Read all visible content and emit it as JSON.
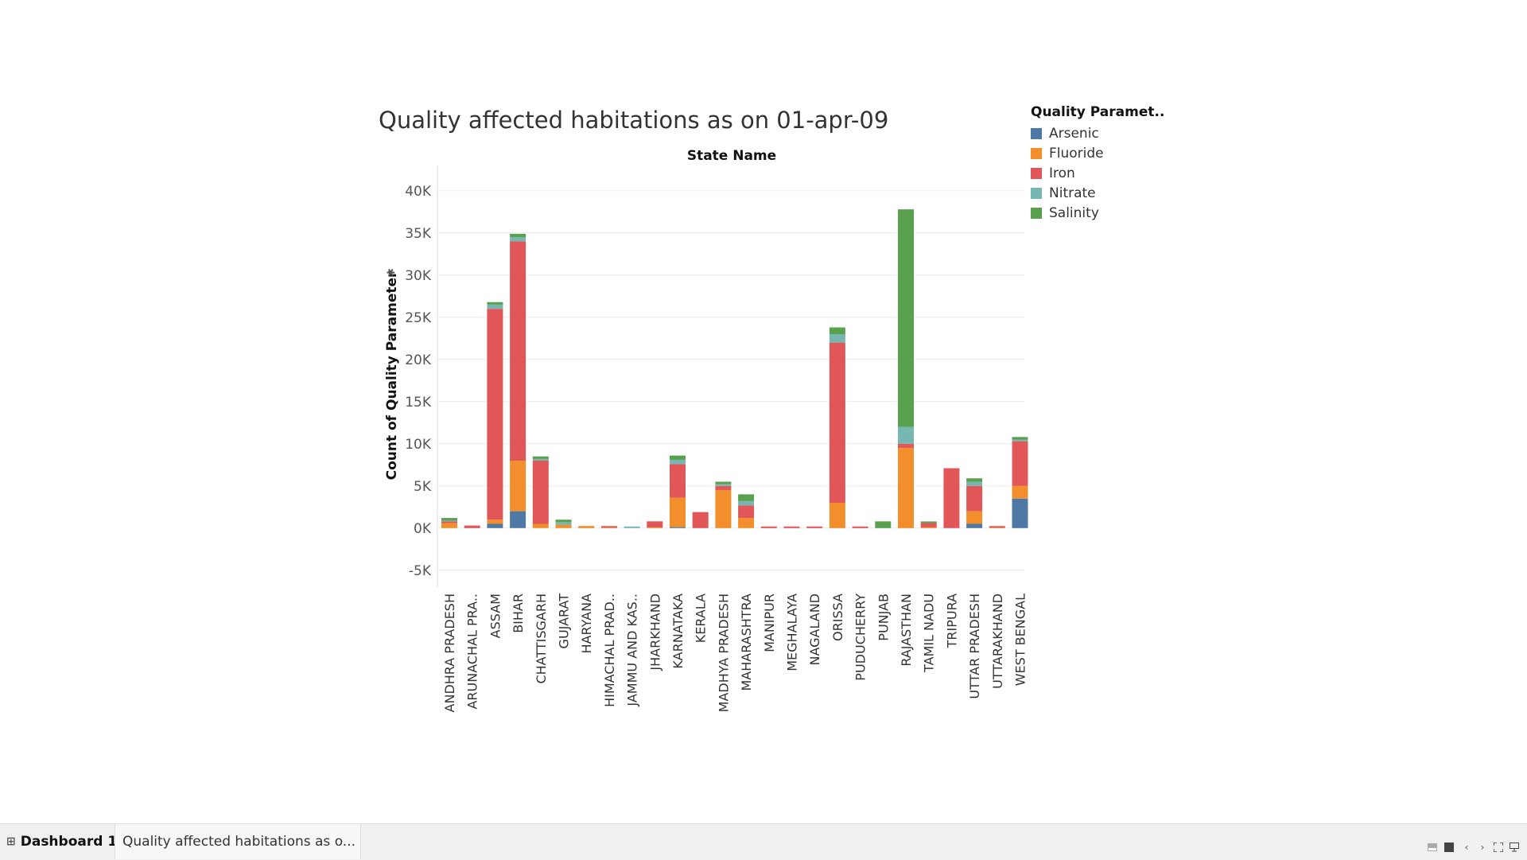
{
  "dashboard": {
    "tabs": [
      {
        "label": "Dashboard 1",
        "active": true
      },
      {
        "label": "Quality affected habitations as o..."
      }
    ]
  },
  "colors": {
    "Arsenic": "#4e79a7",
    "Fluoride": "#f28e2b",
    "Iron": "#e15759",
    "Nitrate": "#76b7b2",
    "Salinity": "#59a14f"
  },
  "chart_data": {
    "type": "bar",
    "stacked": true,
    "title": "Quality affected habitations as on 01-apr-09",
    "column_header": "State Name",
    "ylabel": "Count of Quality Parameter",
    "ylim": [
      -7000,
      43000
    ],
    "yticks": [
      -5000,
      0,
      5000,
      10000,
      15000,
      20000,
      25000,
      30000,
      35000,
      40000
    ],
    "ytick_labels": [
      "-5K",
      "0K",
      "5K",
      "10K",
      "15K",
      "20K",
      "25K",
      "30K",
      "35K",
      "40K"
    ],
    "grid": true,
    "legend": {
      "title": "Quality Paramet..",
      "position": "top-right",
      "entries": [
        "Arsenic",
        "Fluoride",
        "Iron",
        "Nitrate",
        "Salinity"
      ]
    },
    "categories": [
      "ANDHRA PRADESH",
      "ARUNACHAL PRA..",
      "ASSAM",
      "BIHAR",
      "CHATTISGARH",
      "GUJARAT",
      "HARYANA",
      "HIMACHAL PRAD..",
      "JAMMU AND KAS..",
      "JHARKHAND",
      "KARNATAKA",
      "KERALA",
      "MADHYA PRADESH",
      "MAHARASHTRA",
      "MANIPUR",
      "MEGHALAYA",
      "NAGALAND",
      "ORISSA",
      "PUDUCHERRY",
      "PUNJAB",
      "RAJASTHAN",
      "TAMIL NADU",
      "TRIPURA",
      "UTTAR PRADESH",
      "UTTARAKHAND",
      "WEST BENGAL"
    ],
    "series": [
      {
        "name": "Arsenic",
        "values": [
          0,
          0,
          500,
          2000,
          0,
          0,
          0,
          0,
          0,
          0,
          100,
          0,
          0,
          0,
          0,
          0,
          0,
          0,
          0,
          0,
          0,
          0,
          0,
          500,
          0,
          3500
        ]
      },
      {
        "name": "Fluoride",
        "values": [
          600,
          0,
          500,
          6000,
          500,
          400,
          250,
          50,
          0,
          100,
          3500,
          0,
          4500,
          1200,
          0,
          0,
          0,
          3000,
          0,
          0,
          9500,
          100,
          0,
          1500,
          50,
          1500
        ]
      },
      {
        "name": "Iron",
        "values": [
          200,
          300,
          25000,
          26000,
          7500,
          0,
          0,
          100,
          0,
          700,
          4000,
          1900,
          500,
          1500,
          100,
          150,
          150,
          19000,
          100,
          0,
          500,
          500,
          7100,
          3000,
          50,
          5300
        ]
      },
      {
        "name": "Nitrate",
        "values": [
          100,
          0,
          500,
          500,
          200,
          300,
          0,
          0,
          100,
          0,
          500,
          0,
          200,
          500,
          0,
          0,
          0,
          1000,
          0,
          0,
          2000,
          0,
          0,
          500,
          0,
          200
        ]
      },
      {
        "name": "Salinity",
        "values": [
          300,
          0,
          300,
          400,
          300,
          300,
          0,
          0,
          0,
          0,
          500,
          0,
          300,
          800,
          0,
          0,
          0,
          800,
          0,
          800,
          25800,
          100,
          0,
          400,
          0,
          300
        ]
      }
    ]
  }
}
